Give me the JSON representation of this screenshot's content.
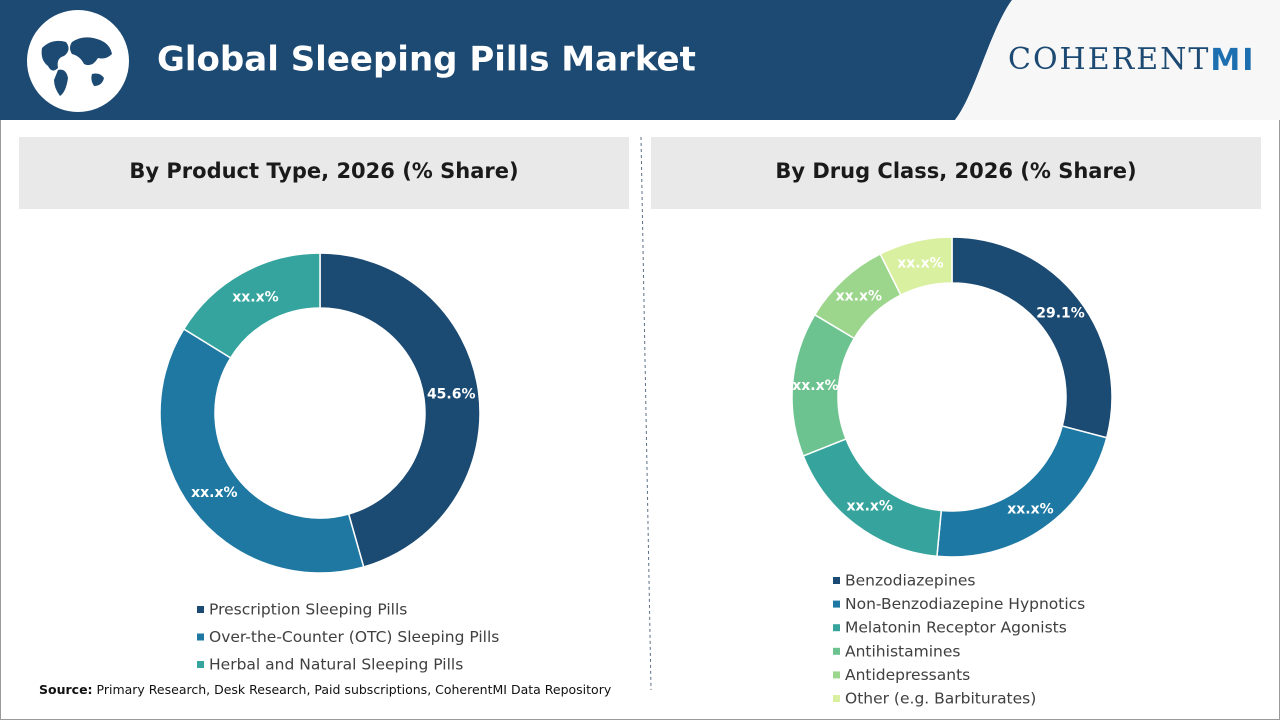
{
  "header": {
    "title": "Global Sleeping Pills Market",
    "logo": "COHERENT",
    "logo_accent": "MI"
  },
  "source": {
    "label": "Source:",
    "text": "Primary Research, Desk Research, Paid subscriptions, CoherentMI Data Repository"
  },
  "chart_data": [
    {
      "type": "donut",
      "title": "By Product Type, 2026 (% Share)",
      "categories": [
        "Prescription Sleeping Pills",
        "Over-the-Counter (OTC) Sleeping Pills",
        "Herbal and Natural Sleeping Pills"
      ],
      "values": [
        45.6,
        38.2,
        16.2
      ],
      "value_labels": [
        "45.6%",
        "xx.x%",
        "xx.x%"
      ],
      "colors": [
        "#1b4a72",
        "#1f78a2",
        "#35a39e"
      ]
    },
    {
      "type": "donut",
      "title": "By Drug Class, 2026 (% Share)",
      "categories": [
        "Benzodiazepines",
        "Non-Benzodiazepine Hypnotics",
        "Melatonin Receptor Agonists",
        "Antihistamines",
        "Antidepressants",
        "Other (e.g. Barbiturates)"
      ],
      "values": [
        29.1,
        22.4,
        17.5,
        14.6,
        9.0,
        7.4
      ],
      "value_labels": [
        "29.1%",
        "xx.x%",
        "xx.x%",
        "xx.x%",
        "xx.x%",
        "xx.x%"
      ],
      "colors": [
        "#1b4a72",
        "#1d78a3",
        "#36a49c",
        "#6cc38f",
        "#9bd68c",
        "#d9f0a0"
      ]
    }
  ]
}
